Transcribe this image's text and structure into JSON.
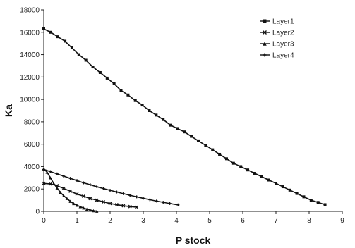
{
  "chart_data": {
    "type": "line",
    "title": "",
    "xlabel": "P stock",
    "ylabel": "Ka",
    "xlim": [
      0,
      9
    ],
    "ylim": [
      0,
      18000
    ],
    "x_ticks": [
      "0",
      "1",
      "2",
      "3",
      "4",
      "5",
      "6",
      "7",
      "8",
      "9"
    ],
    "y_ticks": [
      "0",
      "2000",
      "4000",
      "6000",
      "8000",
      "10000",
      "12000",
      "14000",
      "16000",
      "18000"
    ],
    "grid": false,
    "legend": "top-right",
    "series": [
      {
        "name": "Layer1",
        "marker": "square",
        "x": [
          0,
          0.21,
          0.42,
          0.64,
          0.85,
          1.06,
          1.27,
          1.48,
          1.7,
          1.91,
          2.12,
          2.33,
          2.54,
          2.76,
          2.97,
          3.18,
          3.39,
          3.6,
          3.82,
          4.03,
          4.24,
          4.45,
          4.66,
          4.88,
          5.09,
          5.3,
          5.51,
          5.72,
          5.94,
          6.15,
          6.36,
          6.57,
          6.78,
          7.0,
          7.21,
          7.42,
          7.63,
          7.84,
          8.06,
          8.27,
          8.48
        ],
        "y": [
          16300,
          16000,
          15600,
          15200,
          14600,
          14000,
          13500,
          12900,
          12400,
          11900,
          11400,
          10800,
          10400,
          9900,
          9500,
          9000,
          8600,
          8200,
          7700,
          7400,
          7100,
          6700,
          6300,
          5900,
          5500,
          5100,
          4700,
          4300,
          4000,
          3700,
          3400,
          3100,
          2800,
          2500,
          2200,
          1900,
          1600,
          1300,
          1000,
          800,
          600
        ]
      },
      {
        "name": "Layer2",
        "marker": "cross",
        "x": [
          0,
          0.2,
          0.4,
          0.6,
          0.8,
          1.0,
          1.2,
          1.4,
          1.6,
          1.8,
          2.0,
          2.2,
          2.4,
          2.6,
          2.8
        ],
        "y": [
          2500,
          2450,
          2300,
          2050,
          1800,
          1550,
          1350,
          1150,
          1000,
          850,
          700,
          600,
          500,
          430,
          380
        ]
      },
      {
        "name": "Layer3",
        "marker": "triangle",
        "x": [
          0,
          0.1,
          0.2,
          0.3,
          0.4,
          0.5,
          0.6,
          0.7,
          0.8,
          0.9,
          1.0,
          1.1,
          1.2,
          1.3,
          1.4,
          1.5,
          1.6
        ],
        "y": [
          3800,
          3500,
          3000,
          2500,
          2100,
          1700,
          1400,
          1150,
          900,
          700,
          550,
          420,
          300,
          200,
          120,
          60,
          20
        ]
      },
      {
        "name": "Layer4",
        "marker": "plus",
        "x": [
          0,
          0.2,
          0.4,
          0.6,
          0.8,
          1.0,
          1.2,
          1.4,
          1.6,
          1.8,
          2.0,
          2.2,
          2.4,
          2.6,
          2.8,
          3.0,
          3.2,
          3.4,
          3.6,
          3.8,
          4.05
        ],
        "y": [
          3750,
          3550,
          3350,
          3150,
          2950,
          2750,
          2550,
          2380,
          2200,
          2040,
          1880,
          1730,
          1580,
          1440,
          1300,
          1170,
          1040,
          920,
          810,
          700,
          580
        ]
      }
    ]
  }
}
